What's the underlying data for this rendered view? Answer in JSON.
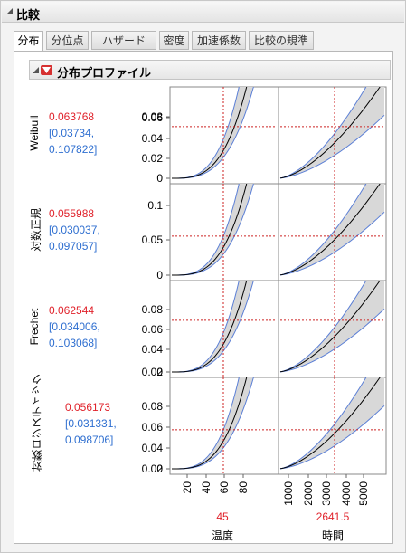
{
  "window": {
    "title": "比較"
  },
  "tabs": [
    {
      "label": "分布"
    },
    {
      "label": "分位点"
    },
    {
      "label": "ハザード"
    },
    {
      "label": "密度"
    },
    {
      "label": "加速係数"
    },
    {
      "label": "比較の規準"
    }
  ],
  "section": {
    "title": "分布プロファイル"
  },
  "rows": [
    {
      "dist": "Weibull",
      "value": "0.063768",
      "ci_line1": "[0.03734,",
      "ci_line2": "0.107822]",
      "ticks": [
        "0.08",
        "0.06",
        "0.04",
        "0.02",
        "0"
      ]
    },
    {
      "dist": "対数正規",
      "value": "0.055988",
      "ci_line1": "[0.030037,",
      "ci_line2": "0.097057]",
      "ticks": [
        "0.1",
        "0.05",
        "0"
      ]
    },
    {
      "dist": "Frechet",
      "value": "0.062544",
      "ci_line1": "[0.034006,",
      "ci_line2": "0.103068]",
      "ticks": [
        "0.08",
        "0.06",
        "0.04",
        "0.02",
        "0"
      ]
    },
    {
      "dist": "対数ロジスティック",
      "value": "0.056173",
      "ci_line1": "[0.031331,",
      "ci_line2": "0.098706]",
      "ticks": [
        "0.08",
        "0.06",
        "0.04",
        "0.02",
        "0"
      ]
    }
  ],
  "x_axes": [
    {
      "label": "温度",
      "current": "45",
      "ticks": [
        "20",
        "40",
        "60",
        "80"
      ]
    },
    {
      "label": "時間",
      "current": "2641.5",
      "ticks": [
        "1000",
        "2000",
        "3000",
        "4000",
        "5000"
      ]
    }
  ],
  "colors": {
    "value_red": "#e0222b",
    "ci_blue": "#2f6fd0",
    "band_fill": "#d8d8d8",
    "band_edge": "#5b7fd6",
    "crosshair": "#cc2222"
  }
}
